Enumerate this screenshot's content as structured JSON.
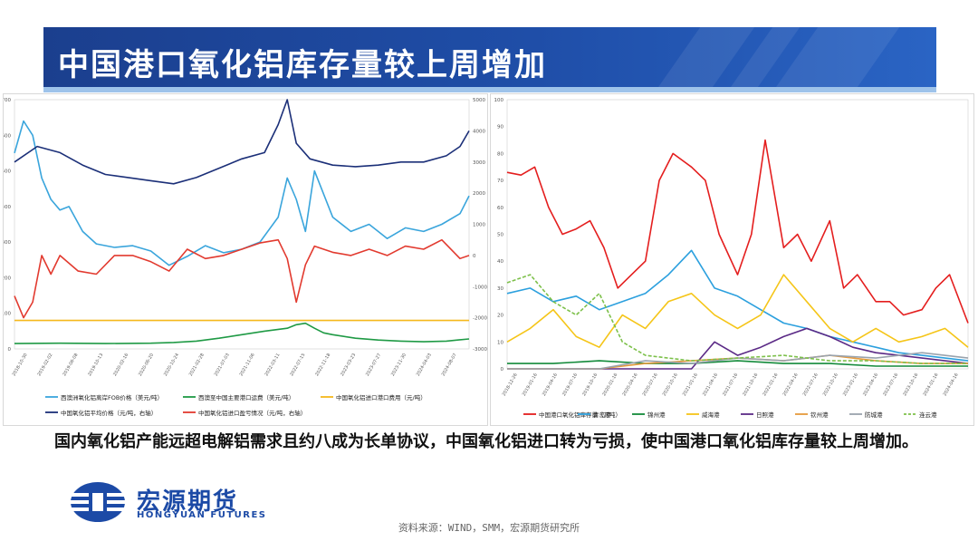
{
  "title": "中国港口氧化铝库存量较上周增加",
  "caption": "国内氧化铝产能远超电解铝需求且约八成为长单协议，中国氧化铝进口转为亏损，使中国港口氧化铝库存量较上周增加。",
  "logo": {
    "cn": "宏源期货",
    "en": "HONGYUAN FUTURES"
  },
  "source": "资料来源：WIND，SMM，宏源期货研究所",
  "colors": {
    "banner": "#1f4ea8",
    "brand": "#1c4aa6"
  },
  "chart_data": [
    {
      "type": "line",
      "left_axis": {
        "ticks": [
          "0",
          "100",
          "200",
          "300",
          "400",
          "500",
          "600",
          "700"
        ],
        "ylim": [
          0,
          700
        ]
      },
      "right_axis": {
        "ticks": [
          "-3000",
          "-2000",
          "-1000",
          "0",
          "1000",
          "2000",
          "3000",
          "4000",
          "5000"
        ],
        "ylim": [
          -3000,
          5000
        ]
      },
      "x_range_label": "2018-2024",
      "x_ticks": [
        "2018-10-30",
        "2019-02-02",
        "2019-06-08",
        "2019-10-13",
        "2020-02-16",
        "2020-06-20",
        "2020-10-24",
        "2021-02-28",
        "2021-07-03",
        "2021-11-06",
        "2022-03-11",
        "2022-07-15",
        "2022-11-18",
        "2023-03-23",
        "2023-07-27",
        "2023-11-30",
        "2024-04-03",
        "2024-08-07"
      ],
      "legend": [
        "西澳洲氧化铝离岸FOB价格（美元/吨）",
        "西澳至中国主要港口运费（美元/吨）",
        "中国氧化铝进口港口费用（元/吨）",
        "中国氧化铝平均价格（元/吨，右轴）",
        "中国氧化铝进口盈亏情况（元/吨，右轴）"
      ],
      "series": [
        {
          "name": "西澳洲氧化铝离岸FOB价格（美元/吨）",
          "axis": "left",
          "color": "#3aa5dc",
          "x": [
            0,
            2,
            4,
            6,
            8,
            10,
            12,
            15,
            18,
            22,
            26,
            30,
            34,
            38,
            42,
            46,
            50,
            54,
            58,
            60,
            62,
            64,
            66,
            70,
            74,
            78,
            82,
            86,
            90,
            94,
            98,
            100
          ],
          "values": [
            550,
            640,
            600,
            480,
            420,
            390,
            400,
            330,
            295,
            285,
            290,
            275,
            235,
            260,
            290,
            270,
            280,
            300,
            370,
            480,
            420,
            330,
            500,
            370,
            330,
            350,
            310,
            340,
            330,
            350,
            380,
            430
          ]
        },
        {
          "name": "西澳至中国主要港口运费（美元/吨）",
          "axis": "left",
          "color": "#1f9a45",
          "x": [
            0,
            10,
            20,
            30,
            35,
            40,
            45,
            50,
            55,
            60,
            62,
            64,
            66,
            68,
            70,
            75,
            80,
            85,
            90,
            95,
            100
          ],
          "values": [
            15,
            16,
            15,
            16,
            18,
            22,
            30,
            40,
            50,
            58,
            68,
            72,
            58,
            45,
            40,
            30,
            25,
            22,
            20,
            22,
            28
          ]
        },
        {
          "name": "中国氧化铝进口港口费用（元/吨）",
          "axis": "left",
          "color": "#f5b81c",
          "x": [
            0,
            100
          ],
          "values": [
            80,
            80
          ]
        },
        {
          "name": "中国氧化铝平均价格（元/吨，右轴）",
          "axis": "right",
          "color": "#1b2f78",
          "x": [
            0,
            5,
            10,
            15,
            20,
            25,
            30,
            35,
            40,
            45,
            50,
            55,
            58,
            60,
            62,
            65,
            70,
            75,
            80,
            85,
            90,
            95,
            98,
            100
          ],
          "values": [
            3000,
            3500,
            3300,
            2900,
            2600,
            2500,
            2400,
            2300,
            2500,
            2800,
            3100,
            3300,
            4200,
            5000,
            3600,
            3100,
            2900,
            2850,
            2900,
            3000,
            3000,
            3200,
            3500,
            4000
          ]
        },
        {
          "name": "中国氧化铝进口盈亏情况（元/吨，右轴）",
          "axis": "right",
          "color": "#e23a2f",
          "x": [
            0,
            2,
            4,
            6,
            8,
            10,
            14,
            18,
            22,
            26,
            30,
            34,
            38,
            42,
            46,
            50,
            54,
            58,
            60,
            62,
            64,
            66,
            70,
            74,
            78,
            82,
            86,
            90,
            94,
            98,
            100
          ],
          "values": [
            -1300,
            -2000,
            -1500,
            0,
            -600,
            0,
            -500,
            -600,
            0,
            0,
            -200,
            -500,
            200,
            -100,
            0,
            200,
            400,
            500,
            -100,
            -1500,
            -300,
            300,
            100,
            0,
            200,
            0,
            300,
            200,
            500,
            -100,
            0
          ]
        }
      ]
    },
    {
      "type": "line",
      "axis": {
        "ticks": [
          "0",
          "10",
          "20",
          "30",
          "40",
          "50",
          "60",
          "70",
          "80",
          "90",
          "100"
        ],
        "ylim": [
          0,
          100
        ]
      },
      "x_ticks": [
        "2018-12-26",
        "2019-01-16",
        "2019-04-16",
        "2019-07-16",
        "2019-10-16",
        "2020-01-16",
        "2020-04-16",
        "2020-07-16",
        "2020-10-16",
        "2021-01-16",
        "2021-04-16",
        "2021-07-16",
        "2021-10-16",
        "2022-01-16",
        "2022-04-16",
        "2022-07-16",
        "2022-10-16",
        "2023-01-16",
        "2023-04-16",
        "2023-07-16",
        "2023-10-16",
        "2024-01-16",
        "2024-04-16"
      ],
      "legend": [
        "中国港口氧化铝库存量（万吨）",
        "青岛港",
        "锦州港",
        "威海港",
        "日照港",
        "钦州港",
        "防城港",
        "连云港"
      ],
      "series": [
        {
          "name": "中国港口氧化铝库存量（万吨）",
          "color": "#e41e1e",
          "x": [
            0,
            3,
            6,
            9,
            12,
            15,
            18,
            21,
            24,
            27,
            30,
            33,
            36,
            40,
            43,
            46,
            50,
            53,
            56,
            60,
            63,
            66,
            70,
            73,
            76,
            80,
            83,
            86,
            90,
            93,
            96,
            100
          ],
          "values": [
            73,
            72,
            75,
            60,
            50,
            52,
            55,
            45,
            30,
            35,
            40,
            70,
            80,
            75,
            70,
            50,
            35,
            50,
            85,
            45,
            50,
            40,
            55,
            30,
            35,
            25,
            25,
            20,
            22,
            30,
            35,
            17
          ]
        },
        {
          "name": "青岛港",
          "color": "#2ca0de",
          "x": [
            0,
            5,
            10,
            15,
            20,
            25,
            30,
            35,
            40,
            45,
            50,
            55,
            60,
            65,
            70,
            75,
            80,
            85,
            90,
            95,
            100
          ],
          "values": [
            28,
            30,
            25,
            27,
            22,
            25,
            28,
            35,
            44,
            30,
            27,
            22,
            17,
            15,
            12,
            10,
            8,
            6,
            5,
            4,
            3
          ]
        },
        {
          "name": "锦州港",
          "color": "#138a3a",
          "x": [
            0,
            10,
            20,
            30,
            40,
            50,
            60,
            70,
            80,
            90,
            100
          ],
          "values": [
            2,
            2,
            3,
            2,
            2,
            3,
            2,
            2,
            1,
            1,
            1
          ]
        },
        {
          "name": "威海港",
          "color": "#f5c518",
          "x": [
            0,
            5,
            10,
            15,
            20,
            25,
            30,
            35,
            40,
            45,
            50,
            55,
            60,
            65,
            70,
            75,
            80,
            85,
            90,
            95,
            100
          ],
          "values": [
            10,
            15,
            22,
            12,
            8,
            20,
            15,
            25,
            28,
            20,
            15,
            20,
            35,
            25,
            15,
            10,
            15,
            10,
            12,
            15,
            8
          ]
        },
        {
          "name": "日照港",
          "color": "#5b2a86",
          "x": [
            0,
            40,
            45,
            50,
            55,
            60,
            65,
            70,
            75,
            80,
            85,
            90,
            95,
            100
          ],
          "values": [
            0,
            0,
            10,
            5,
            8,
            12,
            15,
            12,
            8,
            6,
            5,
            4,
            3,
            2
          ]
        },
        {
          "name": "钦州港",
          "color": "#e69a3c",
          "x": [
            0,
            20,
            30,
            40,
            50,
            60,
            70,
            80,
            90,
            100
          ],
          "values": [
            0,
            0,
            2,
            3,
            4,
            3,
            5,
            3,
            2,
            2
          ]
        },
        {
          "name": "防城港",
          "color": "#9aa3ad",
          "x": [
            0,
            20,
            30,
            40,
            50,
            60,
            70,
            80,
            90,
            100
          ],
          "values": [
            0,
            0,
            3,
            2,
            4,
            3,
            5,
            4,
            6,
            4
          ]
        },
        {
          "name": "连云港",
          "color": "#7dc04a",
          "dashed": true,
          "x": [
            0,
            5,
            10,
            15,
            20,
            25,
            30,
            40,
            50,
            60,
            70,
            80,
            90,
            100
          ],
          "values": [
            32,
            35,
            25,
            20,
            28,
            10,
            5,
            3,
            4,
            5,
            3,
            3,
            2,
            2
          ]
        }
      ]
    }
  ]
}
